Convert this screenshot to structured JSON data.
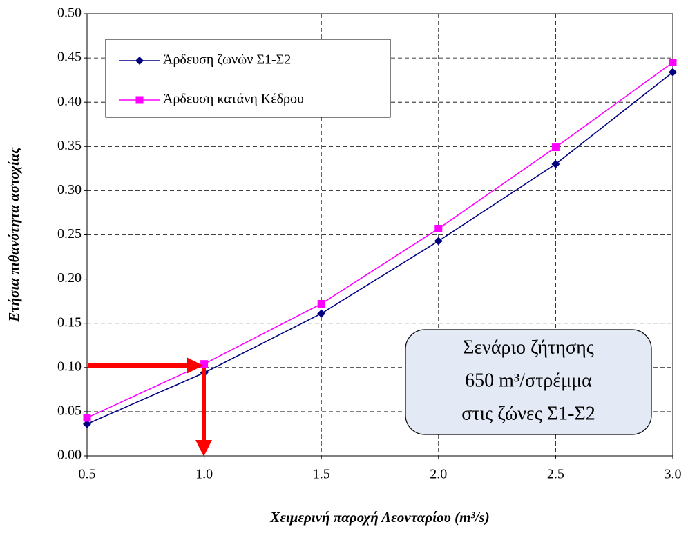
{
  "chart_data": {
    "type": "line",
    "x_label": "Χειμερινή παροχή Λεονταρίου (m³/s)",
    "y_label": "Ετήσια πιθανότητα αστοχίας",
    "x": [
      0.5,
      1.0,
      1.5,
      2.0,
      2.5,
      3.0
    ],
    "series": [
      {
        "name": "Άρδευση ζωνών Σ1-Σ2",
        "color": "#000080",
        "marker": "diamond",
        "values": [
          0.036,
          0.094,
          0.161,
          0.243,
          0.33,
          0.434
        ]
      },
      {
        "name": "Άρδευση κατάνη Κέδρου",
        "color": "#ff00ff",
        "marker": "square",
        "values": [
          0.043,
          0.104,
          0.172,
          0.257,
          0.349,
          0.445
        ]
      }
    ],
    "xlim": [
      0.5,
      3.0
    ],
    "xticks": [
      0.5,
      {
        "value": 1.0,
        "label": "1.0"
      },
      1.5,
      {
        "value": 2.0,
        "label": "2.0"
      },
      2.5,
      {
        "value": 3.0,
        "label": "3.0"
      }
    ],
    "ylim": [
      0,
      0.5
    ],
    "yticks": [
      {
        "value": 0,
        "label": "0.00"
      },
      {
        "value": 0.05,
        "label": "0.05"
      },
      {
        "value": 0.1,
        "label": "0.10"
      },
      {
        "value": 0.15,
        "label": "0.15"
      },
      {
        "value": 0.2,
        "label": "0.20"
      },
      {
        "value": 0.25,
        "label": "0.25"
      },
      {
        "value": 0.3,
        "label": "0.30"
      },
      {
        "value": 0.35,
        "label": "0.35"
      },
      {
        "value": 0.4,
        "label": "0.40"
      },
      {
        "value": 0.45,
        "label": "0.45"
      },
      {
        "value": 0.5,
        "label": "0.50"
      }
    ],
    "grid": true,
    "legend": "upper left",
    "annotation": [
      "Σενάριο ζήτησης",
      "650 m³/στρέμμα",
      "στις ζώνες Σ1-Σ2"
    ]
  }
}
